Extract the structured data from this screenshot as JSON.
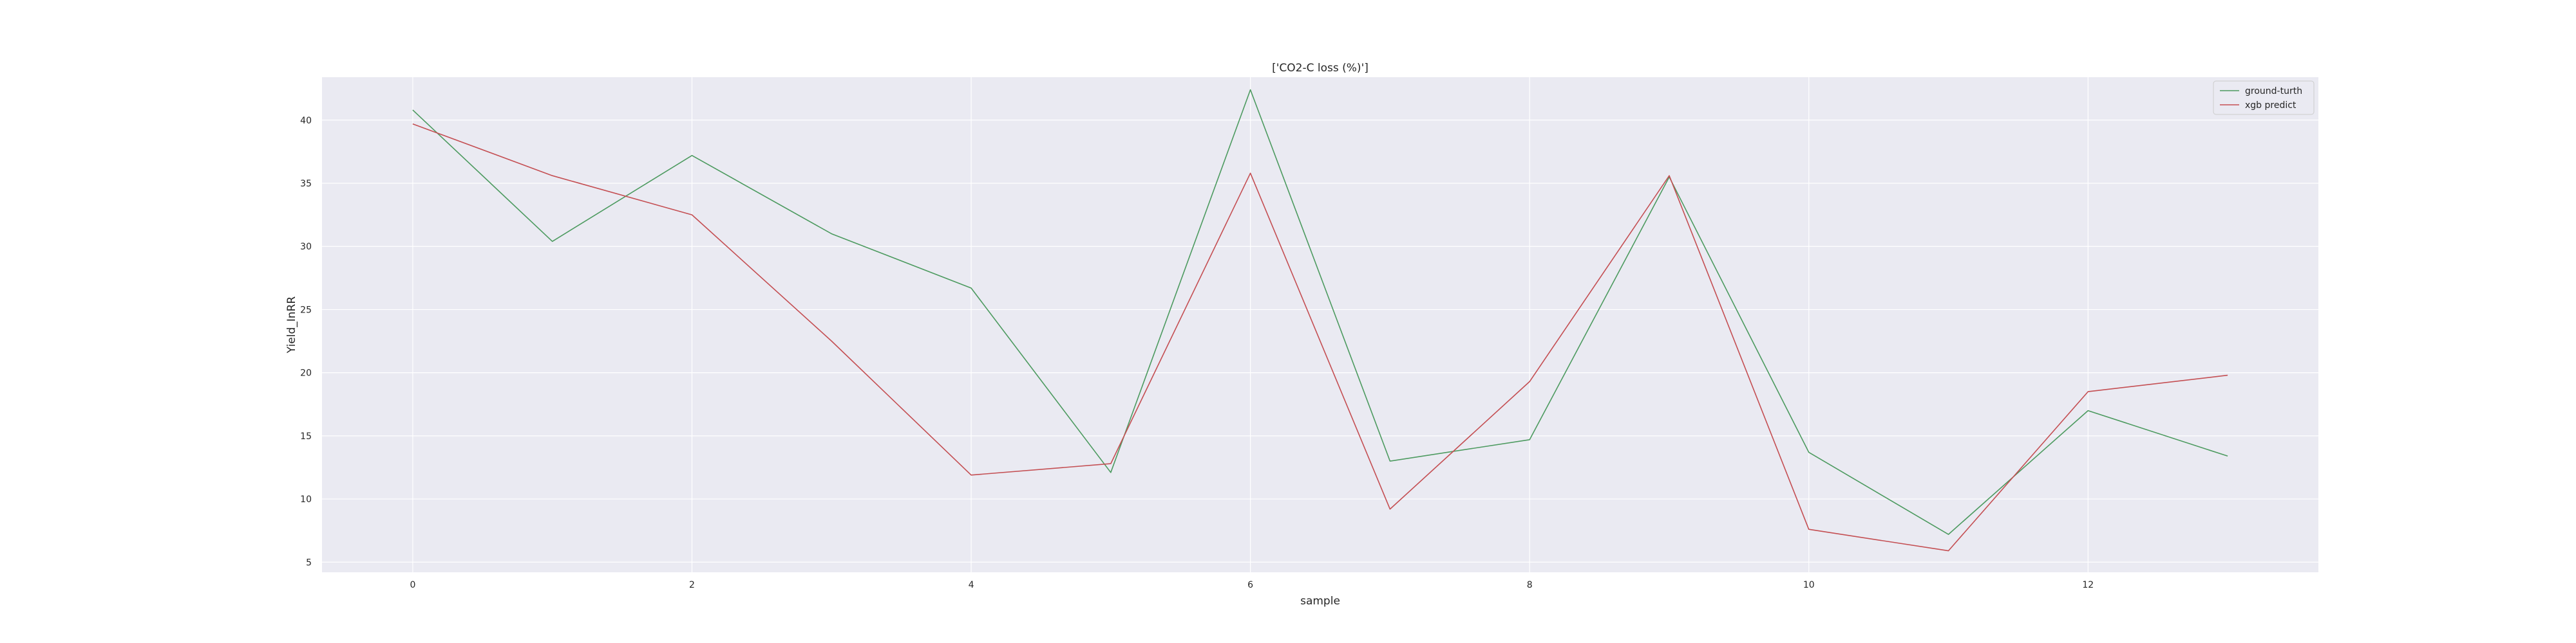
{
  "chart_data": {
    "type": "line",
    "title": "['CO2-C loss (%)']",
    "xlabel": "sample",
    "ylabel": "Yield_InRR",
    "x": [
      0,
      1,
      2,
      3,
      4,
      5,
      6,
      7,
      8,
      9,
      10,
      11,
      12,
      13
    ],
    "xlim": [
      -0.65,
      13.65
    ],
    "ylim": [
      4.2,
      43.4
    ],
    "xticks": [
      0,
      2,
      4,
      6,
      8,
      10,
      12
    ],
    "yticks": [
      5,
      10,
      15,
      20,
      25,
      30,
      35,
      40
    ],
    "grid": true,
    "legend": "top-right",
    "series": [
      {
        "name": "ground-turth",
        "color": "#4c9a5f",
        "values": [
          40.8,
          30.4,
          37.2,
          31.0,
          26.7,
          12.1,
          42.4,
          13.0,
          14.7,
          35.5,
          13.7,
          7.2,
          17.0,
          13.4
        ]
      },
      {
        "name": "xgb predict",
        "color": "#c44e52",
        "values": [
          39.7,
          35.6,
          32.5,
          22.5,
          11.9,
          12.8,
          35.8,
          9.2,
          19.3,
          35.6,
          7.6,
          5.9,
          18.5,
          19.8
        ]
      }
    ]
  }
}
